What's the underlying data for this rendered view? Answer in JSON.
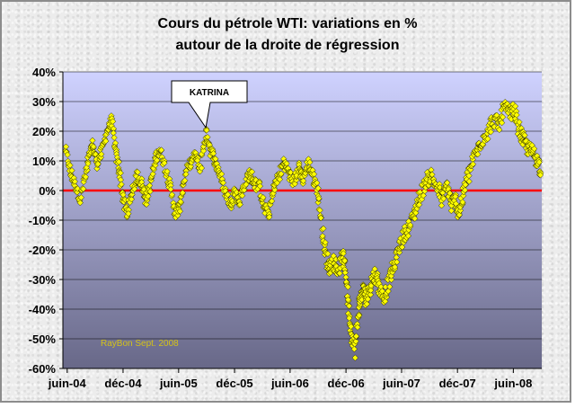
{
  "chart_data": {
    "type": "scatter",
    "title": "Cours du pétrole WTI: variations en %",
    "subtitle": "autour de la droite de régression",
    "xlabel": "",
    "ylabel": "",
    "x_tick_labels": [
      "juin-04",
      "déc-04",
      "juin-05",
      "déc-05",
      "juin-06",
      "déc-06",
      "juin-07",
      "déc-07",
      "juin-08"
    ],
    "y_tick_labels": [
      "40%",
      "30%",
      "20%",
      "10%",
      "0%",
      "-10%",
      "-20%",
      "-30%",
      "-40%",
      "-50%",
      "-60%"
    ],
    "ylim": [
      -60,
      40
    ],
    "xlim": [
      "2004-06",
      "2008-09"
    ],
    "grid": "horizontal",
    "legend": "none",
    "series": [
      {
        "marker": "diamond",
        "color": "#ffff00",
        "edge_color": "#000000",
        "x": [
          "2004-05-26",
          "2004-06-12",
          "2004-06-26",
          "2004-07-14",
          "2004-07-31",
          "2004-08-14",
          "2004-08-23",
          "2004-09-06",
          "2004-09-22",
          "2004-10-09",
          "2004-10-25",
          "2004-11-08",
          "2004-11-19",
          "2004-12-01",
          "2004-12-15",
          "2004-12-31",
          "2005-01-17",
          "2005-02-02",
          "2005-02-14",
          "2005-03-01",
          "2005-03-15",
          "2005-03-31",
          "2005-04-17",
          "2005-05-03",
          "2005-05-21",
          "2005-06-03",
          "2005-06-19",
          "2005-07-07",
          "2005-07-25",
          "2005-08-10",
          "2005-08-29",
          "2005-09-12",
          "2005-09-28",
          "2005-10-13",
          "2005-10-30",
          "2005-11-18",
          "2005-12-01",
          "2005-12-16",
          "2006-01-03",
          "2006-01-20",
          "2006-02-03",
          "2006-02-20",
          "2006-03-08",
          "2006-03-25",
          "2006-04-11",
          "2006-04-27",
          "2006-05-12",
          "2006-05-27",
          "2006-06-13",
          "2006-06-30",
          "2006-07-13",
          "2006-07-31",
          "2006-08-15",
          "2006-08-30",
          "2006-09-13",
          "2006-09-25",
          "2006-10-08",
          "2006-10-22",
          "2006-11-05",
          "2006-11-19",
          "2006-12-01",
          "2006-12-09",
          "2006-12-16",
          "2006-12-30",
          "2007-01-11",
          "2007-01-18",
          "2007-01-27",
          "2007-02-07",
          "2007-02-21",
          "2007-03-07",
          "2007-03-21",
          "2007-04-05",
          "2007-04-22",
          "2007-05-08",
          "2007-05-25",
          "2007-06-09",
          "2007-06-28",
          "2007-07-14",
          "2007-07-31",
          "2007-08-20",
          "2007-09-06",
          "2007-09-27",
          "2007-10-12",
          "2007-10-29",
          "2007-11-10",
          "2007-11-24",
          "2007-12-06",
          "2007-12-20",
          "2008-01-03",
          "2008-01-20",
          "2008-02-06",
          "2008-02-19",
          "2008-03-10",
          "2008-03-28",
          "2008-04-16",
          "2008-05-01",
          "2008-05-17",
          "2008-06-05",
          "2008-06-21",
          "2008-07-04",
          "2008-07-18",
          "2008-08-04",
          "2008-08-18",
          "2008-08-31"
        ],
        "y": [
          14,
          6,
          2,
          -3,
          5,
          12,
          16,
          9,
          13,
          20,
          24,
          12,
          7,
          -3,
          -8,
          0,
          5,
          2,
          -3,
          2,
          10,
          14,
          8,
          2,
          -8,
          -6,
          4,
          9,
          12,
          7,
          20,
          14,
          10,
          6,
          0,
          -5,
          0,
          -4,
          2,
          6,
          3,
          1,
          -6,
          -8,
          2,
          5,
          10,
          6,
          3,
          8,
          4,
          9,
          5,
          0,
          -12,
          -22,
          -26,
          -24,
          -27,
          -22,
          -28,
          -38,
          -47,
          -54,
          -40,
          -36,
          -33,
          -37,
          -31,
          -28,
          -33,
          -36,
          -30,
          -25,
          -19,
          -15,
          -12,
          -7,
          -2,
          3,
          5,
          1,
          -3,
          2,
          -5,
          -3,
          -8,
          -1,
          4,
          10,
          14,
          17,
          20,
          24,
          22,
          28,
          26,
          27,
          20,
          17,
          14,
          13,
          10,
          7
        ],
        "spread": [
          3,
          4,
          3,
          4,
          4,
          3,
          4,
          4,
          3,
          3,
          3,
          4,
          4,
          5,
          4,
          4,
          4,
          4,
          4,
          4,
          4,
          3,
          4,
          4,
          4,
          4,
          4,
          3,
          3,
          4,
          3,
          4,
          4,
          4,
          4,
          4,
          4,
          4,
          4,
          4,
          4,
          4,
          4,
          4,
          4,
          4,
          4,
          4,
          4,
          4,
          4,
          4,
          4,
          4,
          6,
          6,
          5,
          5,
          5,
          6,
          6,
          6,
          6,
          5,
          6,
          5,
          5,
          5,
          5,
          5,
          5,
          5,
          5,
          5,
          5,
          5,
          5,
          5,
          5,
          5,
          5,
          5,
          5,
          5,
          5,
          5,
          5,
          5,
          5,
          5,
          5,
          5,
          5,
          5,
          5,
          5,
          5,
          5,
          5,
          5,
          5,
          5,
          5,
          5
        ]
      }
    ],
    "reference_line": {
      "y": 0,
      "color": "#ff0000"
    },
    "annotations": [
      {
        "text": "KATRINA",
        "x": "2005-08-29",
        "y": 20
      }
    ],
    "watermark": "RayBon Sept. 2008",
    "plot_background": {
      "top": "#cfd2ff",
      "bottom": "#686888"
    }
  }
}
